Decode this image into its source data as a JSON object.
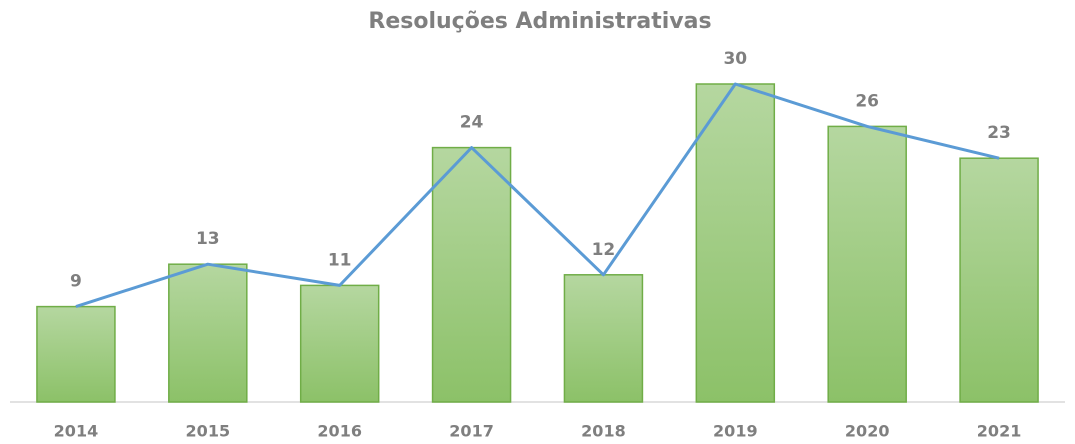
{
  "chart_data": {
    "type": "bar",
    "title": "Resoluções Administrativas",
    "categories": [
      "2014",
      "2015",
      "2016",
      "2017",
      "2018",
      "2019",
      "2020",
      "2021"
    ],
    "values": [
      9,
      13,
      11,
      24,
      12,
      30,
      26,
      23
    ],
    "color": "#a9d18e",
    "edge_color": "#70ad47",
    "line_overlay": true,
    "line_color": "#5b9bd5",
    "ylim": [
      0,
      35
    ],
    "grid": false
  }
}
